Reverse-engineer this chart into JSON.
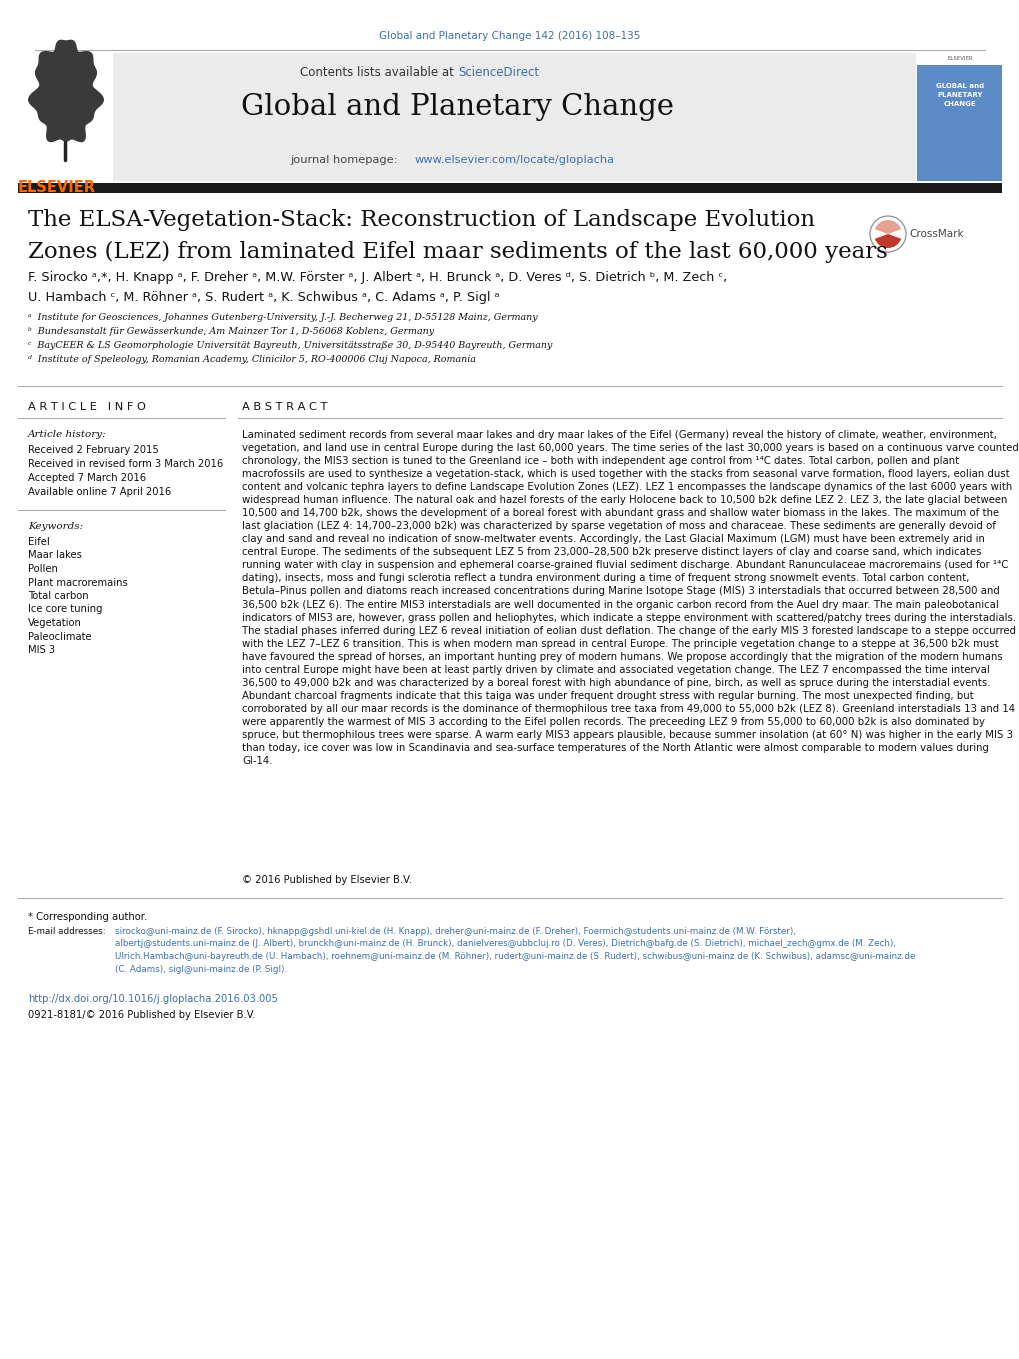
{
  "bg_color": "#ffffff",
  "journal_ref": "Global and Planetary Change 142 (2016) 108–135",
  "journal_ref_color": "#3d6fad",
  "sciencedirect_color": "#3d6fad",
  "journal_homepage_color": "#3d6fad",
  "elsevier_color": "#ff6600",
  "header_bg": "#ebebeb",
  "article_title_line1": "The ELSA-Vegetation-Stack: Reconstruction of Landscape Evolution",
  "article_title_line2": "Zones (LEZ) from laminated Eifel maar sediments of the last 60,000 years",
  "authors_line1": "F. Sirocko ᵃ,*, H. Knapp ᵃ, F. Dreher ᵃ, M.W. Förster ᵃ, J. Albert ᵃ, H. Brunck ᵃ, D. Veres ᵈ, S. Dietrich ᵇ, M. Zech ᶜ,",
  "authors_line2": "U. Hambach ᶜ, M. Röhner ᵃ, S. Rudert ᵃ, K. Schwibus ᵃ, C. Adams ᵃ, P. Sigl ᵃ",
  "affil_a": "ᵃ  Institute for Geosciences, Johannes Gutenberg-University, J.-J. Becherweg 21, D-55128 Mainz, Germany",
  "affil_b": "ᵇ  Bundesanstalt für Gewässerkunde, Am Mainzer Tor 1, D-56068 Koblenz, Germany",
  "affil_c": "ᶜ  BayCEER & LS Geomorphologie Universität Bayreuth, Universitätsstraße 30, D-95440 Bayreuth, Germany",
  "affil_d": "ᵈ  Institute of Speleology, Romanian Academy, Clinicilor 5, RO-400006 Cluj Napoca, Romania",
  "article_info_title": "A R T I C L E   I N F O",
  "abstract_title": "A B S T R A C T",
  "article_history_label": "Article history:",
  "received": "Received 2 February 2015",
  "revised": "Received in revised form 3 March 2016",
  "accepted": "Accepted 7 March 2016",
  "online": "Available online 7 April 2016",
  "keywords_label": "Keywords:",
  "keywords": [
    "Eifel",
    "Maar lakes",
    "Pollen",
    "Plant macroremains",
    "Total carbon",
    "Ice core tuning",
    "Vegetation",
    "Paleoclimate",
    "MIS 3"
  ],
  "abstract_text": "Laminated sediment records from several maar lakes and dry maar lakes of the Eifel (Germany) reveal the history of climate, weather, environment, vegetation, and land use in central Europe during the last 60,000 years. The time series of the last 30,000 years is based on a continuous varve counted chronology, the MIS3 section is tuned to the Greenland ice – both with independent age control from ¹⁴C dates. Total carbon, pollen and plant macrofossils are used to synthesize a vegetation-stack, which is used together with the stacks from seasonal varve formation, flood layers, eolian dust content and volcanic tephra layers to define Landscape Evolution Zones (LEZ). LEZ 1 encompasses the landscape dynamics of the last 6000 years with widespread human influence. The natural oak and hazel forests of the early Holocene back to 10,500 b2k define LEZ 2. LEZ 3, the late glacial between 10,500 and 14,700 b2k, shows the development of a boreal forest with abundant grass and shallow water biomass in the lakes. The maximum of the last glaciation (LEZ 4: 14,700–23,000 b2k) was characterized by sparse vegetation of moss and characeae. These sediments are generally devoid of clay and sand and reveal no indication of snow-meltwater events. Accordingly, the Last Glacial Maximum (LGM) must have been extremely arid in central Europe. The sediments of the subsequent LEZ 5 from 23,000–28,500 b2k preserve distinct layers of clay and coarse sand, which indicates running water with clay in suspension and ephemeral coarse-grained fluvial sediment discharge. Abundant Ranunculaceae macroremains (used for ¹⁴C dating), insects, moss and fungi sclerotia reflect a tundra environment during a time of frequent strong snowmelt events. Total carbon content, Betula–Pinus pollen and diatoms reach increased concentrations during Marine Isotope Stage (MIS) 3 interstadials that occurred between 28,500 and 36,500 b2k (LEZ 6). The entire MIS3 interstadials are well documented in the organic carbon record from the Auel dry maar. The main paleobotanical indicators of MIS3 are, however, grass pollen and heliophytes, which indicate a steppe environment with scattered/patchy trees during the interstadials. The stadial phases inferred during LEZ 6 reveal initiation of eolian dust deflation. The change of the early MIS 3 forested landscape to a steppe occurred with the LEZ 7–LEZ 6 transition. This is when modern man spread in central Europe. The principle vegetation change to a steppe at 36,500 b2k must have favoured the spread of horses, an important hunting prey of modern humans. We propose accordingly that the migration of the modern humans into central Europe might have been at least partly driven by climate and associated vegetation change. The LEZ 7 encompassed the time interval 36,500 to 49,000 b2k and was characterized by a boreal forest with high abundance of pine, birch, as well as spruce during the interstadial events. Abundant charcoal fragments indicate that this taiga was under frequent drought stress with regular burning. The most unexpected finding, but corroborated by all our maar records is the dominance of thermophilous tree taxa from 49,000 to 55,000 b2k (LEZ 8). Greenland interstadials 13 and 14 were apparently the warmest of MIS 3 according to the Eifel pollen records. The preceeding LEZ 9 from 55,000 to 60,000 b2k is also dominated by spruce, but thermophilous trees were sparse. A warm early MIS3 appears plausible, because summer insolation (at 60° N) was higher in the early MIS 3 than today, ice cover was low in Scandinavia and sea-surface temperatures of the North Atlantic were almost comparable to modern values during GI-14.",
  "copyright": "© 2016 Published by Elsevier B.V.",
  "corresponding_note": "* Corresponding author.",
  "email_label": "E-mail addresses: ",
  "email_text": "sirocko@uni-mainz.de (F. Sirocko), hknapp@gshdl.uni-kiel.de (H. Knapp), dreher@uni-mainz.de (F. Dreher), Foermich@students.uni-mainz.de (M.W. Förster),\nalbertj@students.uni-mainz.de (J. Albert), brunckh@uni-mainz.de (H. Brunck), danielveres@ubbcluj.ro (D. Veres), Dietrich@bafg.de (S. Dietrich), michael_zech@gmx.de (M. Zech),\nUlrich.Hambach@uni-bayreuth.de (U. Hambach), roehnem@uni-mainz.de (M. Röhner), rudert@uni-mainz.de (S. Rudert), schwibus@uni-mainz.de (K. Schwibus), adamsc@uni-mainz.de\n(C. Adams), sigl@uni-mainz.de (P. Sigl).",
  "doi_line": "http://dx.doi.org/10.1016/j.gloplacha.2016.03.005",
  "doi_color": "#3d6fad",
  "issn_line": "0921-8181/© 2016 Published by Elsevier B.V.",
  "bar_color": "#1a1a1a",
  "rule_color": "#aaaaaa",
  "cover_bg": "#5b8bc7",
  "cover_text": "GLOBAL and\nPLANETARY\nCHANGE"
}
